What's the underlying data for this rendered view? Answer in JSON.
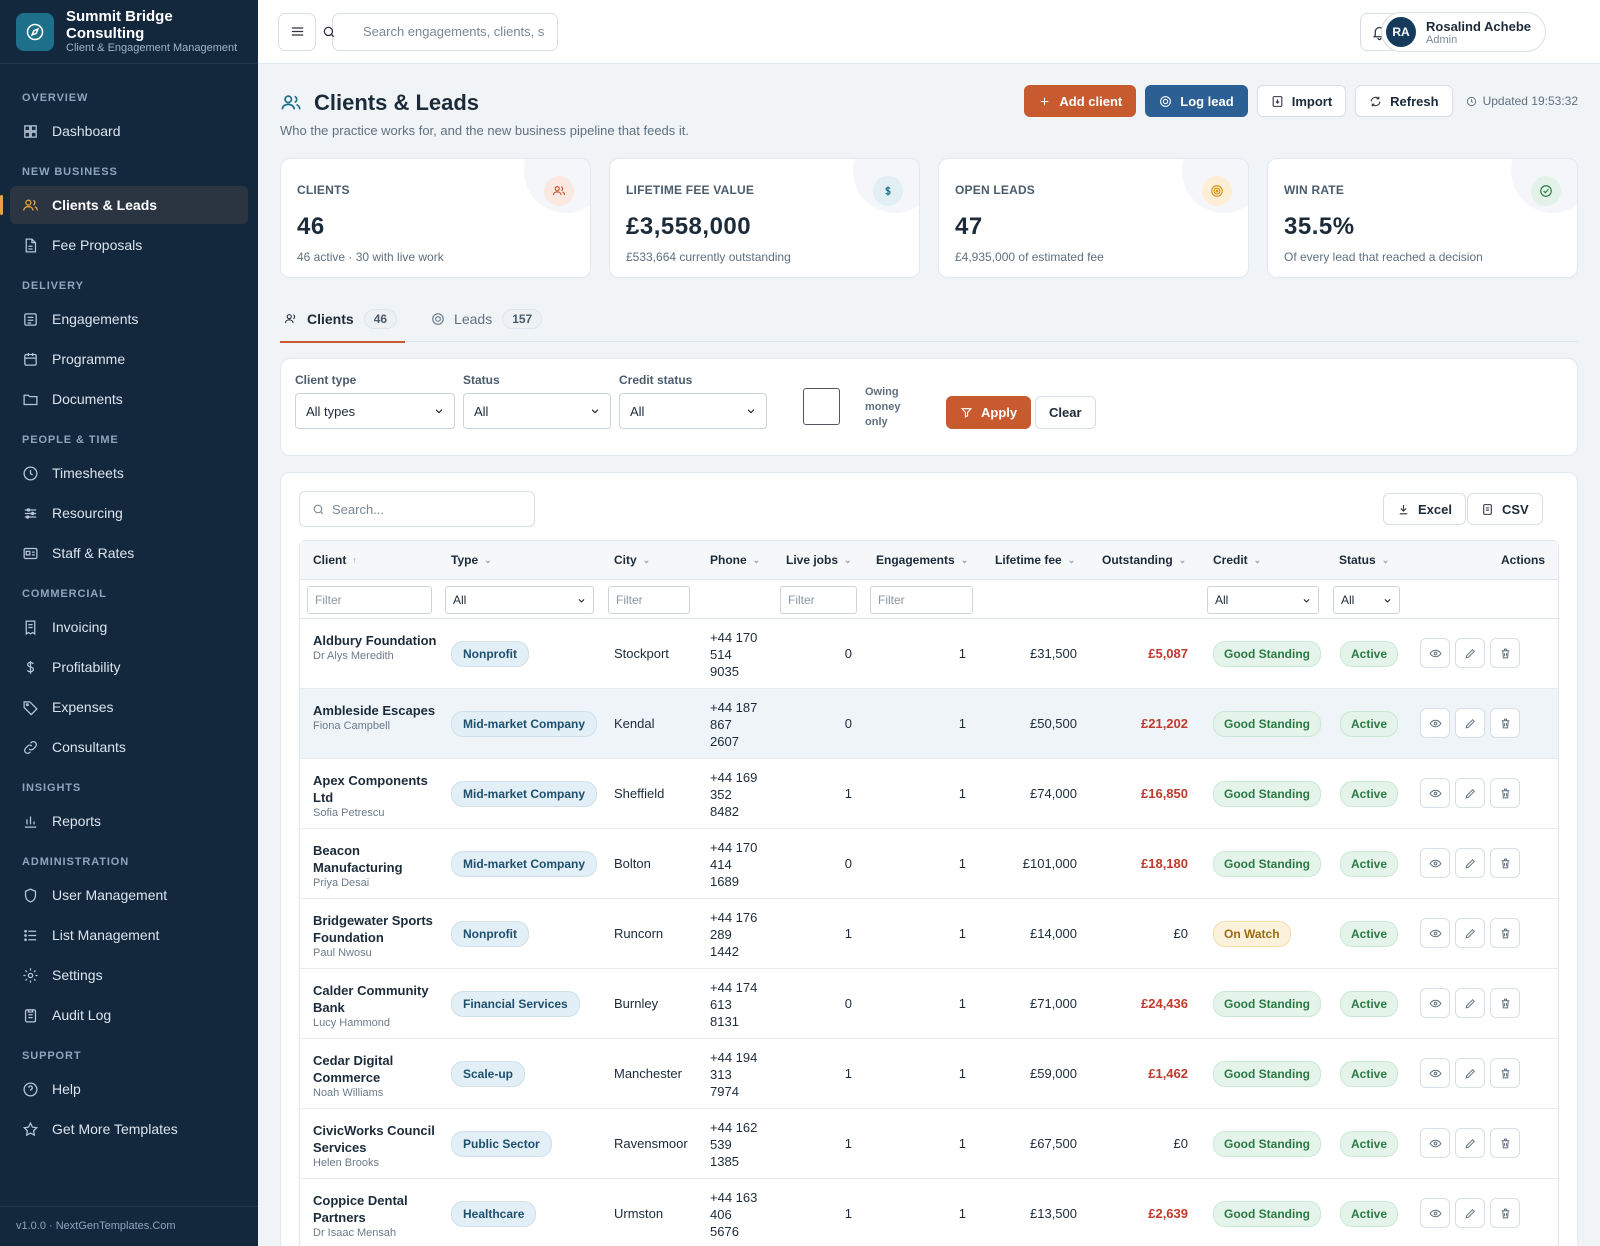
{
  "brand": {
    "name": "Summit Bridge Consulting",
    "subtitle": "Client & Engagement Management"
  },
  "sidebar": {
    "sections": [
      {
        "title": "OVERVIEW",
        "items": [
          {
            "label": "Dashboard",
            "icon": "dashboard-icon"
          }
        ]
      },
      {
        "title": "NEW BUSINESS",
        "items": [
          {
            "label": "Clients & Leads",
            "icon": "users-icon",
            "active": true
          },
          {
            "label": "Fee Proposals",
            "icon": "file-icon"
          }
        ]
      },
      {
        "title": "DELIVERY",
        "items": [
          {
            "label": "Engagements",
            "icon": "list-icon"
          },
          {
            "label": "Programme",
            "icon": "calendar-icon"
          },
          {
            "label": "Documents",
            "icon": "folder-icon"
          }
        ]
      },
      {
        "title": "PEOPLE & TIME",
        "items": [
          {
            "label": "Timesheets",
            "icon": "clock-icon"
          },
          {
            "label": "Resourcing",
            "icon": "sliders-icon"
          },
          {
            "label": "Staff & Rates",
            "icon": "id-card-icon"
          }
        ]
      },
      {
        "title": "COMMERCIAL",
        "items": [
          {
            "label": "Invoicing",
            "icon": "invoice-icon"
          },
          {
            "label": "Profitability",
            "icon": "dollar-icon"
          },
          {
            "label": "Expenses",
            "icon": "tag-icon"
          },
          {
            "label": "Consultants",
            "icon": "link-icon"
          }
        ]
      },
      {
        "title": "INSIGHTS",
        "items": [
          {
            "label": "Reports",
            "icon": "bar-chart-icon"
          }
        ]
      },
      {
        "title": "ADMINISTRATION",
        "items": [
          {
            "label": "User Management",
            "icon": "shield-icon"
          },
          {
            "label": "List Management",
            "icon": "list-bullets-icon"
          },
          {
            "label": "Settings",
            "icon": "gear-icon"
          },
          {
            "label": "Audit Log",
            "icon": "clipboard-icon"
          }
        ]
      },
      {
        "title": "SUPPORT",
        "items": [
          {
            "label": "Help",
            "icon": "help-icon"
          },
          {
            "label": "Get More Templates",
            "icon": "star-icon"
          }
        ]
      }
    ],
    "footer": "v1.0.0 · NextGenTemplates.Com"
  },
  "topbar": {
    "search_placeholder": "Search engagements, clients, s",
    "user": {
      "initials": "RA",
      "name": "Rosalind Achebe",
      "role": "Admin"
    }
  },
  "page": {
    "title": "Clients & Leads",
    "subtitle": "Who the practice works for, and the new business pipeline that feeds it.",
    "actions": {
      "add_client": "Add client",
      "log_lead": "Log lead",
      "import": "Import",
      "refresh": "Refresh"
    },
    "updated": "Updated 19:53:32"
  },
  "kpis": [
    {
      "label": "CLIENTS",
      "value": "46",
      "note": "46 active · 30 with live work",
      "color": "#c85a30"
    },
    {
      "label": "LIFETIME FEE VALUE",
      "value": "£3,558,000",
      "note": "£533,664 currently outstanding",
      "color": "#1d6f8a"
    },
    {
      "label": "OPEN LEADS",
      "value": "47",
      "note": "£4,935,000 of estimated fee",
      "color": "#d9951f"
    },
    {
      "label": "WIN RATE",
      "value": "35.5%",
      "note": "Of every lead that reached a decision",
      "color": "#2b7a44"
    }
  ],
  "tabs": [
    {
      "label": "Clients",
      "count": "46"
    },
    {
      "label": "Leads",
      "count": "157"
    }
  ],
  "filters": {
    "client_type": {
      "label": "Client type",
      "value": "All types"
    },
    "status": {
      "label": "Status",
      "value": "All"
    },
    "credit_status": {
      "label": "Credit status",
      "value": "All"
    },
    "owing_label": "Owing money only",
    "apply": "Apply",
    "clear": "Clear"
  },
  "table": {
    "search_placeholder": "Search...",
    "export_excel": "Excel",
    "export_csv": "CSV",
    "columns": [
      "Client",
      "Type",
      "City",
      "Phone",
      "Live jobs",
      "Engagements",
      "Lifetime fee",
      "Outstanding",
      "Credit",
      "Status",
      "Actions"
    ],
    "filter_placeholder": "Filter",
    "filter_all": "All",
    "rows": [
      {
        "name": "Aldbury Foundation",
        "contact": "Dr Alys Meredith",
        "type": "Nonprofit",
        "city": "Stockport",
        "phone": "+44 170 514 9035",
        "live": "0",
        "eng": "1",
        "fee": "£31,500",
        "out": "£5,087",
        "credit": "Good Standing",
        "status": "Active"
      },
      {
        "name": "Ambleside Escapes",
        "contact": "Fiona Campbell",
        "type": "Mid-market Company",
        "city": "Kendal",
        "phone": "+44 187 867 2607",
        "live": "0",
        "eng": "1",
        "fee": "£50,500",
        "out": "£21,202",
        "credit": "Good Standing",
        "status": "Active"
      },
      {
        "name": "Apex Components Ltd",
        "contact": "Sofia Petrescu",
        "type": "Mid-market Company",
        "city": "Sheffield",
        "phone": "+44 169 352 8482",
        "live": "1",
        "eng": "1",
        "fee": "£74,000",
        "out": "£16,850",
        "credit": "Good Standing",
        "status": "Active"
      },
      {
        "name": "Beacon Manufacturing",
        "contact": "Priya Desai",
        "type": "Mid-market Company",
        "city": "Bolton",
        "phone": "+44 170 414 1689",
        "live": "0",
        "eng": "1",
        "fee": "£101,000",
        "out": "£18,180",
        "credit": "Good Standing",
        "status": "Active"
      },
      {
        "name": "Bridgewater Sports Foundation",
        "contact": "Paul Nwosu",
        "type": "Nonprofit",
        "city": "Runcorn",
        "phone": "+44 176 289 1442",
        "live": "1",
        "eng": "1",
        "fee": "£14,000",
        "out": "£0",
        "credit": "On Watch",
        "status": "Active"
      },
      {
        "name": "Calder Community Bank",
        "contact": "Lucy Hammond",
        "type": "Financial Services",
        "city": "Burnley",
        "phone": "+44 174 613 8131",
        "live": "0",
        "eng": "1",
        "fee": "£71,000",
        "out": "£24,436",
        "credit": "Good Standing",
        "status": "Active"
      },
      {
        "name": "Cedar Digital Commerce",
        "contact": "Noah Williams",
        "type": "Scale-up",
        "city": "Manchester",
        "phone": "+44 194 313 7974",
        "live": "1",
        "eng": "1",
        "fee": "£59,000",
        "out": "£1,462",
        "credit": "Good Standing",
        "status": "Active"
      },
      {
        "name": "CivicWorks Council Services",
        "contact": "Helen Brooks",
        "type": "Public Sector",
        "city": "Ravensmoor",
        "phone": "+44 162 539 1385",
        "live": "1",
        "eng": "1",
        "fee": "£67,500",
        "out": "£0",
        "credit": "Good Standing",
        "status": "Active"
      },
      {
        "name": "Coppice Dental Partners",
        "contact": "Dr Isaac Mensah",
        "type": "Healthcare",
        "city": "Urmston",
        "phone": "+44 163 406 5676",
        "live": "1",
        "eng": "1",
        "fee": "£13,500",
        "out": "£2,639",
        "credit": "Good Standing",
        "status": "Active"
      }
    ]
  }
}
